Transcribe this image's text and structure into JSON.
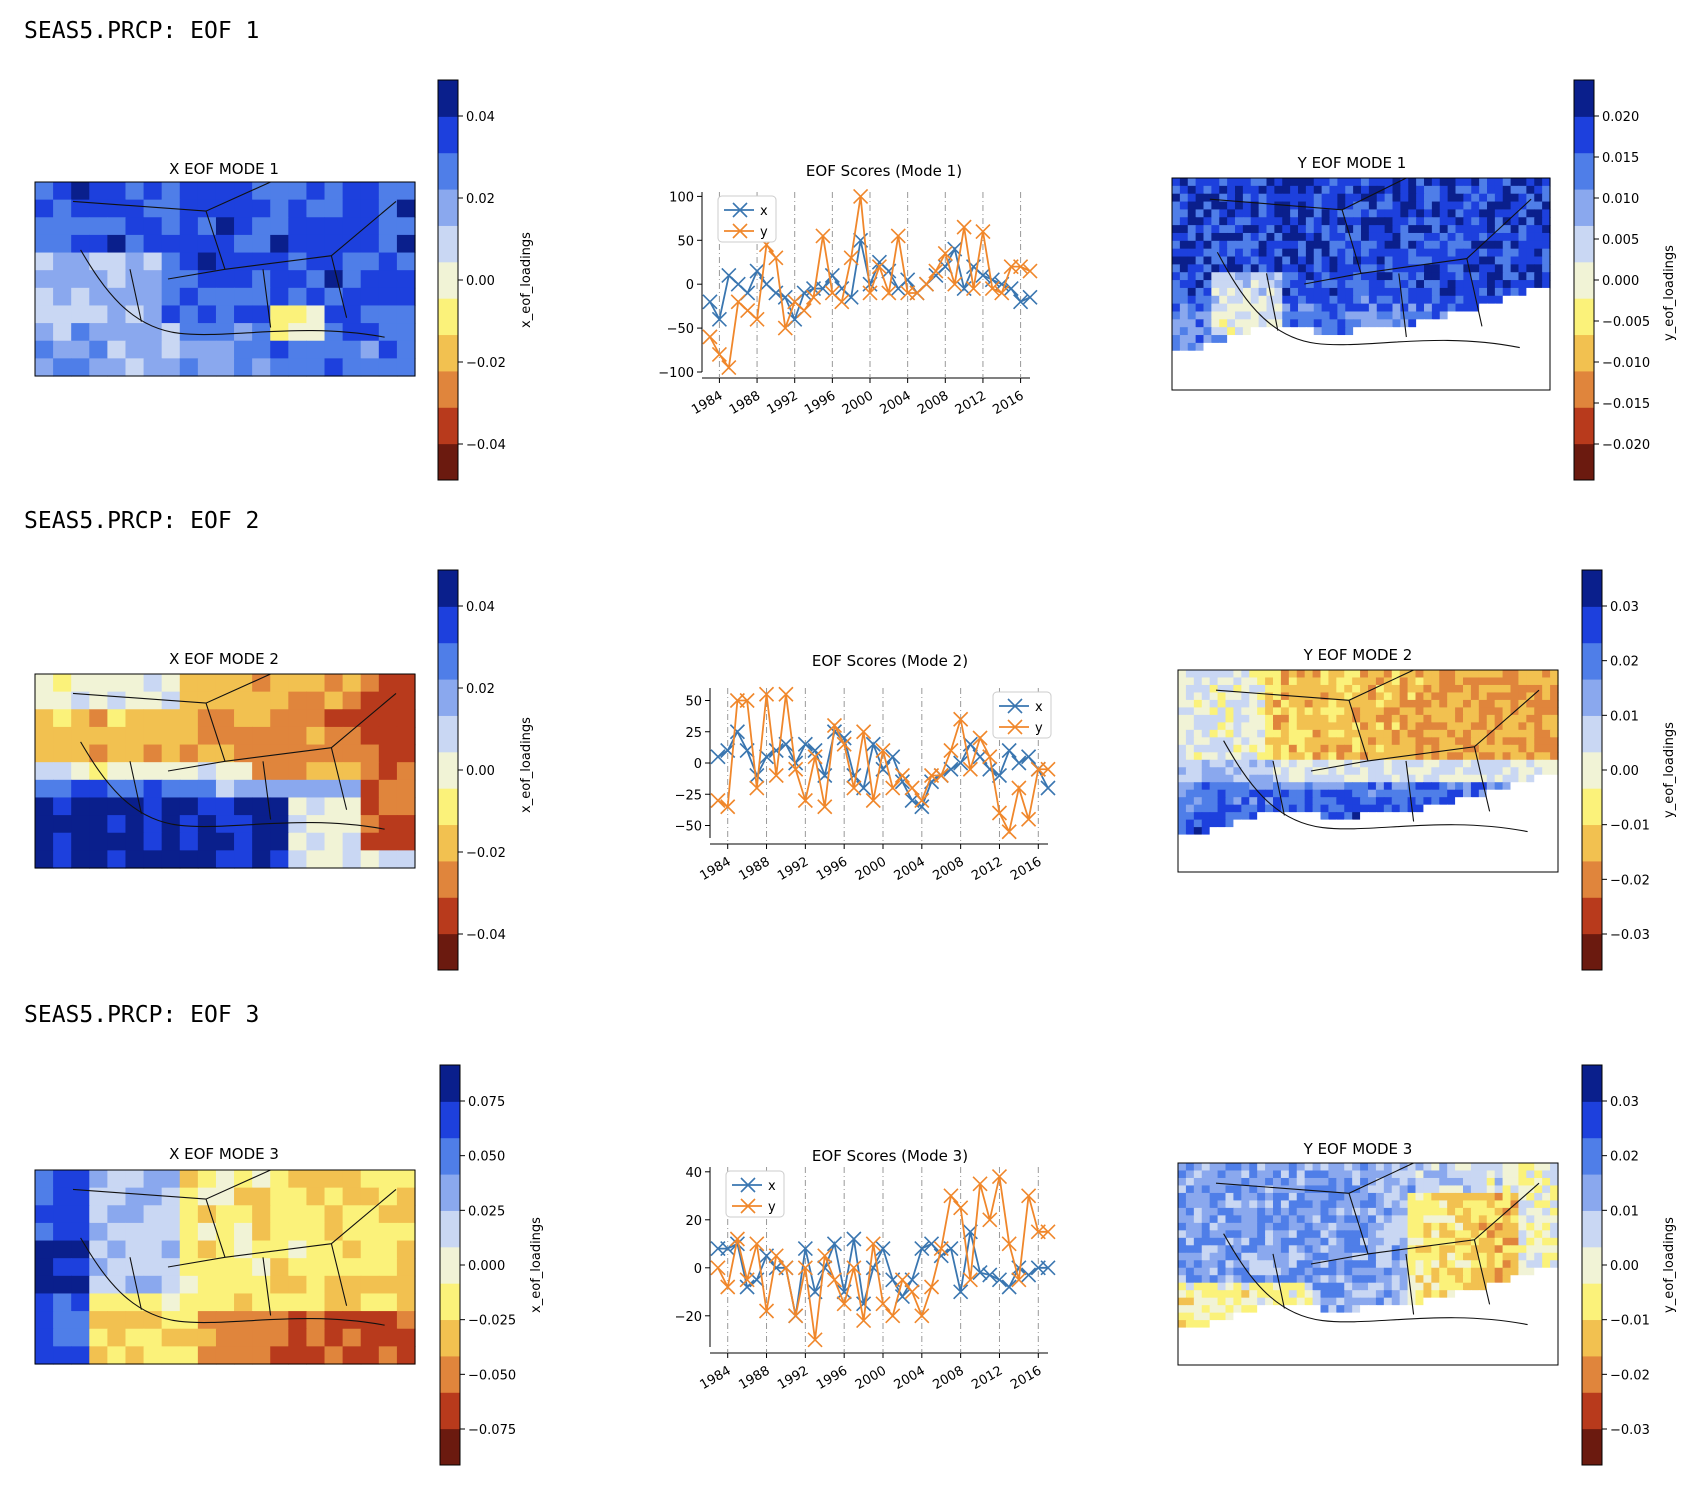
{
  "sections": [
    {
      "heading": "SEAS5.PRCP: EOF 1",
      "x_map": {
        "title": "X EOF MODE 1"
      },
      "x_colorbar": {
        "label": "x_eof_loadings",
        "ticks": [
          "0.04",
          "0.02",
          "0.00",
          "−0.02",
          "−0.04"
        ]
      },
      "scores_title": "EOF Scores (Mode 1)",
      "y_map": {
        "title": "Y EOF MODE 1"
      },
      "y_colorbar": {
        "label": "y_eof_loadings",
        "ticks": [
          "0.020",
          "0.015",
          "0.010",
          "0.005",
          "0.000",
          "−0.005",
          "−0.010",
          "−0.015",
          "−0.020"
        ]
      }
    },
    {
      "heading": "SEAS5.PRCP: EOF 2",
      "x_map": {
        "title": "X EOF MODE 2"
      },
      "x_colorbar": {
        "label": "x_eof_loadings",
        "ticks": [
          "0.04",
          "0.02",
          "0.00",
          "−0.02",
          "−0.04"
        ]
      },
      "scores_title": "EOF Scores (Mode 2)",
      "y_map": {
        "title": "Y EOF MODE 2"
      },
      "y_colorbar": {
        "label": "y_eof_loadings",
        "ticks": [
          "0.03",
          "0.02",
          "0.01",
          "0.00",
          "−0.01",
          "−0.02",
          "−0.03"
        ]
      }
    },
    {
      "heading": "SEAS5.PRCP: EOF 3",
      "x_map": {
        "title": "X EOF MODE 3"
      },
      "x_colorbar": {
        "label": "x_eof_loadings",
        "ticks": [
          "0.075",
          "0.050",
          "0.025",
          "0.000",
          "−0.025",
          "−0.050",
          "−0.075"
        ]
      },
      "scores_title": "EOF Scores (Mode 3)",
      "y_map": {
        "title": "Y EOF MODE 3"
      },
      "y_colorbar": {
        "label": "y_eof_loadings",
        "ticks": [
          "0.03",
          "0.02",
          "0.01",
          "0.00",
          "−0.01",
          "−0.02",
          "−0.03"
        ]
      }
    }
  ],
  "colors": {
    "x_series": "#3a76b0",
    "y_series": "#f0872b",
    "colormap": [
      "#6b1a0f",
      "#b83a1c",
      "#e0853c",
      "#f2c150",
      "#fbf27a",
      "#f1f3d6",
      "#c9d7f3",
      "#8aa8ee",
      "#4f7ee8",
      "#1d40dd",
      "#0a1f8c"
    ]
  },
  "chart_data": [
    {
      "type": "line",
      "title": "EOF Scores (Mode 1)",
      "x": [
        1983,
        1984,
        1985,
        1986,
        1987,
        1988,
        1989,
        1990,
        1991,
        1992,
        1993,
        1994,
        1995,
        1996,
        1997,
        1998,
        1999,
        2000,
        2001,
        2002,
        2003,
        2004,
        2005,
        2006,
        2007,
        2008,
        2009,
        2010,
        2011,
        2012,
        2013,
        2014,
        2015,
        2016,
        2017
      ],
      "x_tick_labels": [
        "1984",
        "1988",
        "1992",
        "1996",
        "2000",
        "2004",
        "2008",
        "2012",
        "2016"
      ],
      "ylim": [
        -100,
        105
      ],
      "y_ticks": [
        100,
        50,
        0,
        -50,
        -100
      ],
      "legend": "top-left",
      "series": [
        {
          "name": "x",
          "values": [
            -20,
            -40,
            10,
            0,
            -10,
            15,
            0,
            -10,
            -15,
            -40,
            -10,
            -5,
            -5,
            10,
            -5,
            -15,
            50,
            0,
            25,
            15,
            -5,
            5,
            -10,
            0,
            10,
            20,
            40,
            -5,
            20,
            10,
            5,
            0,
            -5,
            -20,
            -15
          ]
        },
        {
          "name": "y",
          "values": [
            -60,
            -80,
            -95,
            -20,
            -30,
            -40,
            45,
            30,
            -50,
            -20,
            -30,
            -15,
            55,
            -10,
            -20,
            30,
            100,
            -10,
            20,
            -10,
            55,
            -10,
            -10,
            0,
            15,
            35,
            0,
            65,
            -5,
            60,
            -5,
            -10,
            20,
            20,
            15
          ]
        }
      ]
    },
    {
      "type": "line",
      "title": "EOF Scores (Mode 2)",
      "x": [
        1983,
        1984,
        1985,
        1986,
        1987,
        1988,
        1989,
        1990,
        1991,
        1992,
        1993,
        1994,
        1995,
        1996,
        1997,
        1998,
        1999,
        2000,
        2001,
        2002,
        2003,
        2004,
        2005,
        2006,
        2007,
        2008,
        2009,
        2010,
        2011,
        2012,
        2013,
        2014,
        2015,
        2016,
        2017
      ],
      "x_tick_labels": [
        "1984",
        "1988",
        "1992",
        "1996",
        "2000",
        "2004",
        "2008",
        "2012",
        "2016"
      ],
      "ylim": [
        -60,
        60
      ],
      "y_ticks": [
        50,
        25,
        0,
        -25,
        -50
      ],
      "legend": "top-right",
      "series": [
        {
          "name": "x",
          "values": [
            5,
            10,
            25,
            10,
            -10,
            5,
            10,
            15,
            0,
            15,
            10,
            -10,
            25,
            20,
            -10,
            -20,
            15,
            -5,
            5,
            -15,
            -30,
            -35,
            -15,
            -10,
            -5,
            0,
            15,
            5,
            -5,
            -10,
            10,
            0,
            5,
            -5,
            -20
          ]
        },
        {
          "name": "y",
          "values": [
            -30,
            -35,
            50,
            50,
            -20,
            55,
            -10,
            55,
            -5,
            -30,
            5,
            -35,
            30,
            15,
            -20,
            25,
            -30,
            10,
            -20,
            -10,
            -20,
            -30,
            -10,
            -10,
            10,
            35,
            -5,
            20,
            5,
            -40,
            -55,
            -20,
            -45,
            -5,
            -5
          ]
        }
      ]
    },
    {
      "type": "line",
      "title": "EOF Scores (Mode 3)",
      "x": [
        1983,
        1984,
        1985,
        1986,
        1987,
        1988,
        1989,
        1990,
        1991,
        1992,
        1993,
        1994,
        1995,
        1996,
        1997,
        1998,
        1999,
        2000,
        2001,
        2002,
        2003,
        2004,
        2005,
        2006,
        2007,
        2008,
        2009,
        2010,
        2011,
        2012,
        2013,
        2014,
        2015,
        2016,
        2017
      ],
      "x_tick_labels": [
        "1984",
        "1988",
        "1992",
        "1996",
        "2000",
        "2004",
        "2008",
        "2012",
        "2016"
      ],
      "ylim": [
        -33,
        42
      ],
      "y_ticks": [
        40,
        20,
        0,
        -20
      ],
      "legend": "top-left",
      "series": [
        {
          "name": "x",
          "values": [
            8,
            8,
            10,
            -8,
            -5,
            5,
            0,
            0,
            -20,
            8,
            -10,
            0,
            10,
            -10,
            12,
            -15,
            0,
            8,
            -5,
            -12,
            -5,
            8,
            10,
            5,
            8,
            -10,
            15,
            -2,
            -3,
            -5,
            -8,
            0,
            -3,
            0,
            0
          ]
        },
        {
          "name": "y",
          "values": [
            0,
            -8,
            12,
            -5,
            10,
            -18,
            5,
            0,
            -20,
            0,
            -30,
            5,
            -5,
            -15,
            0,
            -22,
            10,
            -15,
            -20,
            -5,
            -10,
            -20,
            -8,
            8,
            30,
            25,
            -5,
            35,
            20,
            38,
            10,
            -5,
            30,
            15,
            15
          ]
        }
      ]
    }
  ]
}
